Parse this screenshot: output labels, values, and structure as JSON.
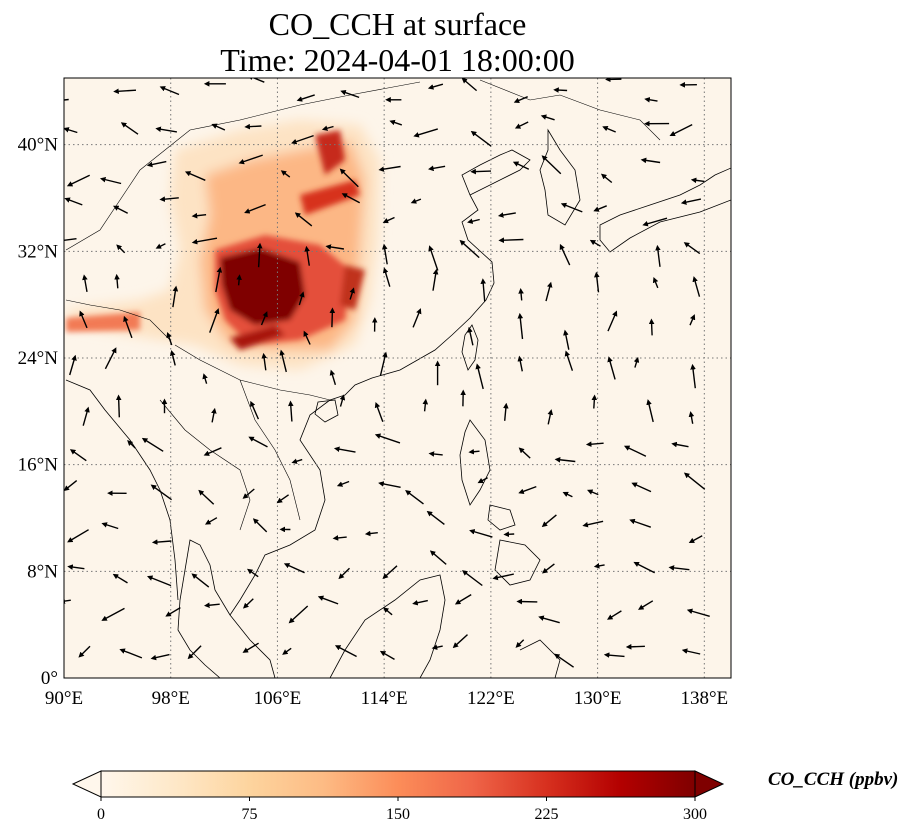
{
  "title": {
    "line1": "CO_CCH at surface",
    "line2": "Time: 2024-04-01 18:00:00"
  },
  "map": {
    "projection": "PlateCarree",
    "lon_range": [
      90,
      140
    ],
    "lat_range": [
      0,
      45
    ],
    "background_color": "#fdf5ea",
    "gridlines": "dotted",
    "lon_ticks": [
      {
        "value": 90,
        "label": "90°E"
      },
      {
        "value": 98,
        "label": "98°E"
      },
      {
        "value": 106,
        "label": "106°E"
      },
      {
        "value": 114,
        "label": "114°E"
      },
      {
        "value": 122,
        "label": "122°E"
      },
      {
        "value": 130,
        "label": "130°E"
      },
      {
        "value": 138,
        "label": "138°E"
      }
    ],
    "lat_ticks": [
      {
        "value": 0,
        "label": "0°"
      },
      {
        "value": 8,
        "label": "8°N"
      },
      {
        "value": 16,
        "label": "16°N"
      },
      {
        "value": 24,
        "label": "24°N"
      },
      {
        "value": 32,
        "label": "32°N"
      },
      {
        "value": 40,
        "label": "40°N"
      }
    ]
  },
  "colorbar": {
    "label": "CO_CCH (ppbv)",
    "min": 0,
    "max": 300,
    "extend": "both",
    "colormap": "OrRd",
    "colors": [
      "#fff7ec",
      "#fee8c8",
      "#fdd49e",
      "#fdbb84",
      "#fc8d59",
      "#ef6548",
      "#d7301f",
      "#b30000",
      "#7f0000"
    ],
    "ticks": [
      {
        "value": 0,
        "label": "0"
      },
      {
        "value": 75,
        "label": "75"
      },
      {
        "value": 150,
        "label": "150"
      },
      {
        "value": 225,
        "label": "225"
      },
      {
        "value": 300,
        "label": "300"
      }
    ]
  }
}
